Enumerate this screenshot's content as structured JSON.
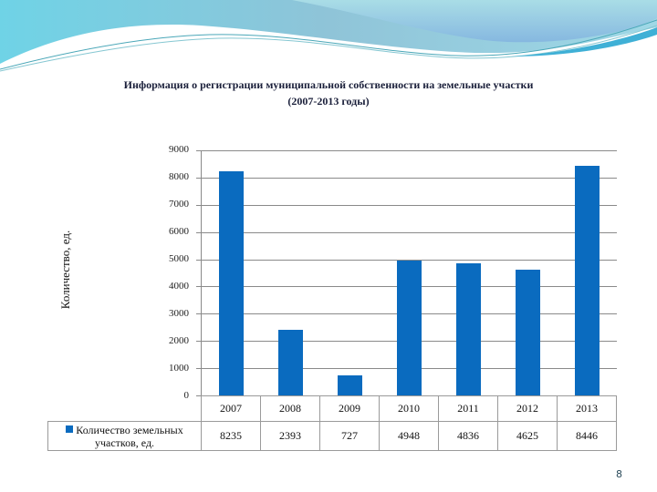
{
  "slide": {
    "title_line1": "Информация о регистрации муниципальной собственности на земельные участки",
    "title_line2": "(2007-2013 годы)",
    "page_number": "8"
  },
  "chart_data": {
    "type": "bar",
    "title": "Информация о регистрации муниципальной собственности на земельные участки (2007-2013 годы)",
    "xlabel": "",
    "ylabel": "Количество, ед.",
    "categories": [
      "2007",
      "2008",
      "2009",
      "2010",
      "2011",
      "2012",
      "2013"
    ],
    "series": [
      {
        "name": "Количество земельных участков, ед.",
        "values": [
          8235,
          2393,
          727,
          4948,
          4836,
          4625,
          8446
        ],
        "color": "#0a6bbf"
      }
    ],
    "values": [
      8235,
      2393,
      727,
      4948,
      4836,
      4625,
      8446
    ],
    "ylim": [
      0,
      9000
    ],
    "yticks": [
      "0",
      "1000",
      "2000",
      "3000",
      "4000",
      "5000",
      "6000",
      "7000",
      "8000",
      "9000"
    ],
    "grid": true,
    "legend_position": "data-table",
    "data_table": true
  },
  "table": {
    "legend_label_line1": "Количество земельных",
    "legend_label_line2": "участков, ед.",
    "years": [
      "2007",
      "2008",
      "2009",
      "2010",
      "2011",
      "2012",
      "2013"
    ],
    "values": [
      "8235",
      "2393",
      "727",
      "4948",
      "4836",
      "4625",
      "8446"
    ]
  },
  "colors": {
    "bar": "#0a6bbf",
    "grid": "#8a8a8a",
    "title": "#1a1f3a"
  }
}
